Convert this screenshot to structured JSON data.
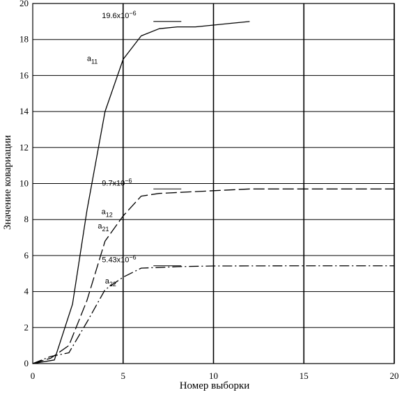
{
  "chart_data": {
    "type": "line",
    "xlabel": "Номер выборки",
    "ylabel": "Значение ковариации",
    "xlim": [
      0,
      20
    ],
    "ylim": [
      0,
      20
    ],
    "x_ticks": [
      "0",
      "5",
      "10",
      "15",
      "20"
    ],
    "y_ticks": [
      "0",
      "2",
      "4",
      "6",
      "8",
      "10",
      "12",
      "14",
      "16",
      "18",
      "20"
    ],
    "grid": true,
    "series": [
      {
        "name": "a11",
        "style": "solid",
        "x": [
          0,
          1.2,
          2.2,
          3.0,
          4.0,
          5.0,
          6.0,
          7.0,
          8.0,
          9.0,
          10.0,
          11.0,
          12.0
        ],
        "y": [
          0,
          0.2,
          3.3,
          8.5,
          14.0,
          16.9,
          18.2,
          18.6,
          18.7,
          18.7,
          18.8,
          18.9,
          19.0
        ]
      },
      {
        "name": "a12, a21",
        "style": "dashed",
        "x": [
          0,
          1.0,
          2.0,
          3.0,
          4.0,
          5.0,
          6.0,
          7.0,
          8.0,
          9.0,
          10.0,
          12.0,
          15.0,
          20.0
        ],
        "y": [
          0,
          0.3,
          1.0,
          3.5,
          6.8,
          8.2,
          9.3,
          9.45,
          9.5,
          9.55,
          9.6,
          9.7,
          9.7,
          9.7
        ]
      },
      {
        "name": "a22",
        "style": "dash-dot",
        "x": [
          0,
          1.0,
          2.0,
          3.0,
          4.0,
          5.0,
          6.0,
          8.0,
          10.0,
          15.0,
          20.0
        ],
        "y": [
          0,
          0.4,
          0.6,
          2.3,
          4.1,
          4.8,
          5.3,
          5.38,
          5.42,
          5.43,
          5.43
        ]
      }
    ],
    "annotations": [
      {
        "text": "19.6x10",
        "exp": "−6",
        "x": 6.6,
        "y": 19.0
      },
      {
        "text": "9.7x10",
        "exp": "−6",
        "x": 6.6,
        "y": 9.7
      },
      {
        "text": "5.43x10",
        "exp": "−6",
        "x": 6.6,
        "y": 5.43
      }
    ],
    "curve_labels": [
      {
        "base": "a",
        "sub": "11",
        "x": 3.0,
        "y": 16.8
      },
      {
        "base": "a",
        "sub": "12",
        "x": 3.8,
        "y": 8.3
      },
      {
        "base": "a",
        "sub": "21",
        "x": 3.6,
        "y": 7.5
      },
      {
        "base": "a",
        "sub": "22",
        "x": 4.0,
        "y": 4.45
      }
    ]
  }
}
